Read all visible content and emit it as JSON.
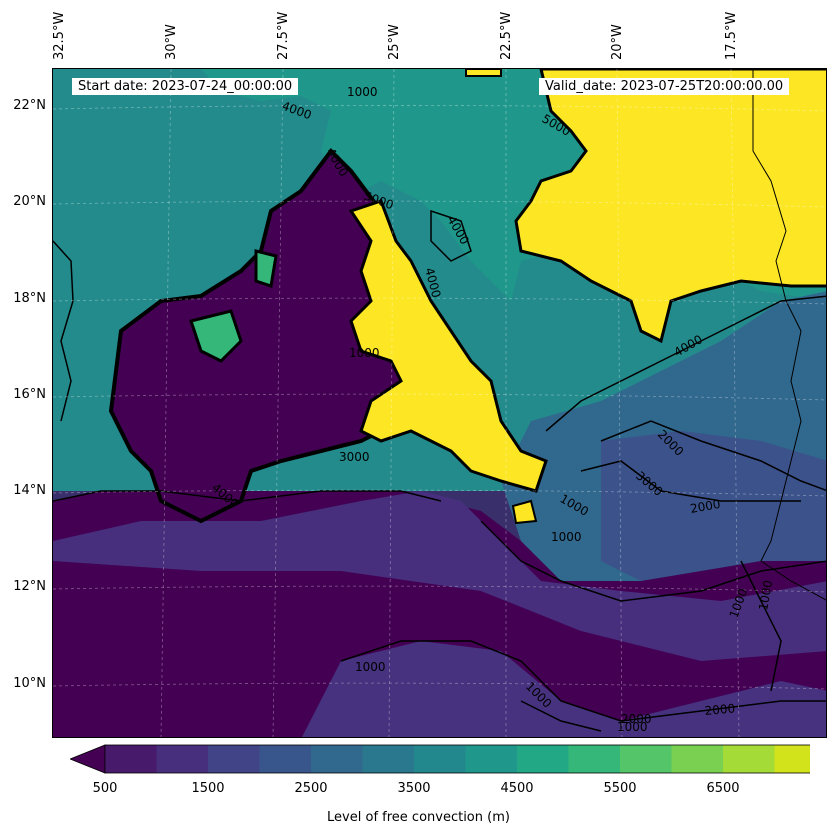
{
  "header": {
    "start_date": "Start date: 2023-07-24_00:00:00",
    "valid_date": "Valid_date: 2023-07-25T20:00:00.00"
  },
  "longitude_labels": [
    "32.5°W",
    "30°W",
    "27.5°W",
    "25°W",
    "22.5°W",
    "20°W",
    "17.5°W"
  ],
  "latitude_labels": [
    "22°N",
    "20°N",
    "18°N",
    "16°N",
    "14°N",
    "12°N",
    "10°N"
  ],
  "contour_labels": [
    "4000",
    "5000",
    "4000",
    "4000",
    "4000",
    "1000",
    "2000",
    "3000",
    "1000",
    "2000",
    "1000",
    "1000",
    "2000",
    "1000",
    "1000",
    "1000",
    "1000",
    "2000",
    "4000",
    "5000",
    "3000",
    "1000",
    "4000"
  ],
  "colorbar": {
    "label": "Level of free convection (m)",
    "tick_labels": [
      "500",
      "1500",
      "2500",
      "3500",
      "4500",
      "5500",
      "6500"
    ],
    "colors": [
      "#440154",
      "#481a6c",
      "#472f7d",
      "#414487",
      "#39568c",
      "#31688e",
      "#2a788e",
      "#23888e",
      "#1f988b",
      "#22a884",
      "#35b779",
      "#54c568",
      "#7ad151",
      "#a5db36",
      "#d2e21b",
      "#fde725"
    ]
  },
  "chart_data": {
    "type": "heatmap",
    "variable": "Level of free convection (m)",
    "units": "m",
    "levels": [
      500,
      1000,
      1500,
      2000,
      2500,
      3000,
      3500,
      4000,
      4500,
      5000,
      5500,
      6000,
      6500,
      7000
    ],
    "contour_levels": [
      1000,
      2000,
      3000,
      4000,
      5000
    ],
    "extent": {
      "lon": [
        -32.5,
        -15.5
      ],
      "lat": [
        8.8,
        22.8
      ]
    },
    "gridlines": true,
    "colorbar_extend": "both"
  }
}
